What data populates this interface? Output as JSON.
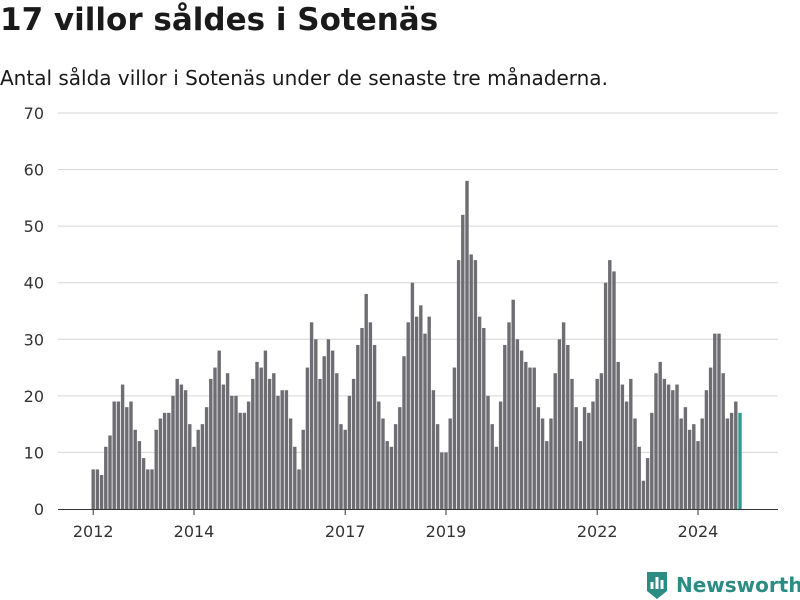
{
  "colors": {
    "bar": "#6e6d72",
    "highlight": "#2a9d8f",
    "grid": "#d6d6d6",
    "brand": "#2b8c84"
  },
  "brand": {
    "name": "Newsworthy",
    "icon": "bar-chart-logo-icon"
  },
  "chart_data": {
    "type": "bar",
    "title": "17 villor såldes i Sotenäs",
    "subtitle": "Antal sålda villor i Sotenäs under de senaste tre månaderna.",
    "xlabel": "",
    "ylabel": "",
    "ylim": [
      0,
      70
    ],
    "yticks": [
      0,
      10,
      20,
      30,
      40,
      50,
      60,
      70
    ],
    "xticks": [
      {
        "label": "2012",
        "index": 0
      },
      {
        "label": "2014",
        "index": 24
      },
      {
        "label": "2017",
        "index": 60
      },
      {
        "label": "2019",
        "index": 84
      },
      {
        "label": "2022",
        "index": 120
      },
      {
        "label": "2024",
        "index": 144
      }
    ],
    "grid": true,
    "start": "2012-01",
    "frequency": "monthly",
    "annotation": {
      "text": "17",
      "index": 155
    },
    "highlight_last": true,
    "values": [
      7,
      7,
      6,
      11,
      13,
      19,
      19,
      22,
      18,
      19,
      14,
      12,
      9,
      7,
      7,
      14,
      16,
      17,
      17,
      20,
      23,
      22,
      21,
      15,
      11,
      14,
      15,
      18,
      23,
      25,
      28,
      22,
      24,
      20,
      20,
      17,
      17,
      19,
      23,
      26,
      25,
      28,
      23,
      24,
      20,
      21,
      21,
      16,
      11,
      7,
      14,
      25,
      33,
      30,
      23,
      27,
      30,
      28,
      24,
      15,
      14,
      20,
      23,
      29,
      32,
      38,
      33,
      29,
      19,
      16,
      12,
      11,
      15,
      18,
      27,
      33,
      40,
      34,
      36,
      31,
      34,
      21,
      15,
      10,
      10,
      16,
      25,
      44,
      52,
      58,
      45,
      44,
      34,
      32,
      20,
      15,
      11,
      19,
      29,
      33,
      37,
      30,
      28,
      26,
      25,
      25,
      18,
      16,
      12,
      16,
      24,
      30,
      33,
      29,
      23,
      18,
      12,
      18,
      17,
      19,
      23,
      24,
      40,
      44,
      42,
      26,
      22,
      19,
      23,
      16,
      11,
      5,
      9,
      17,
      24,
      26,
      23,
      22,
      21,
      22,
      16,
      18,
      14,
      15,
      12,
      16,
      21,
      25,
      31,
      31,
      24,
      16,
      17,
      19,
      17
    ]
  }
}
